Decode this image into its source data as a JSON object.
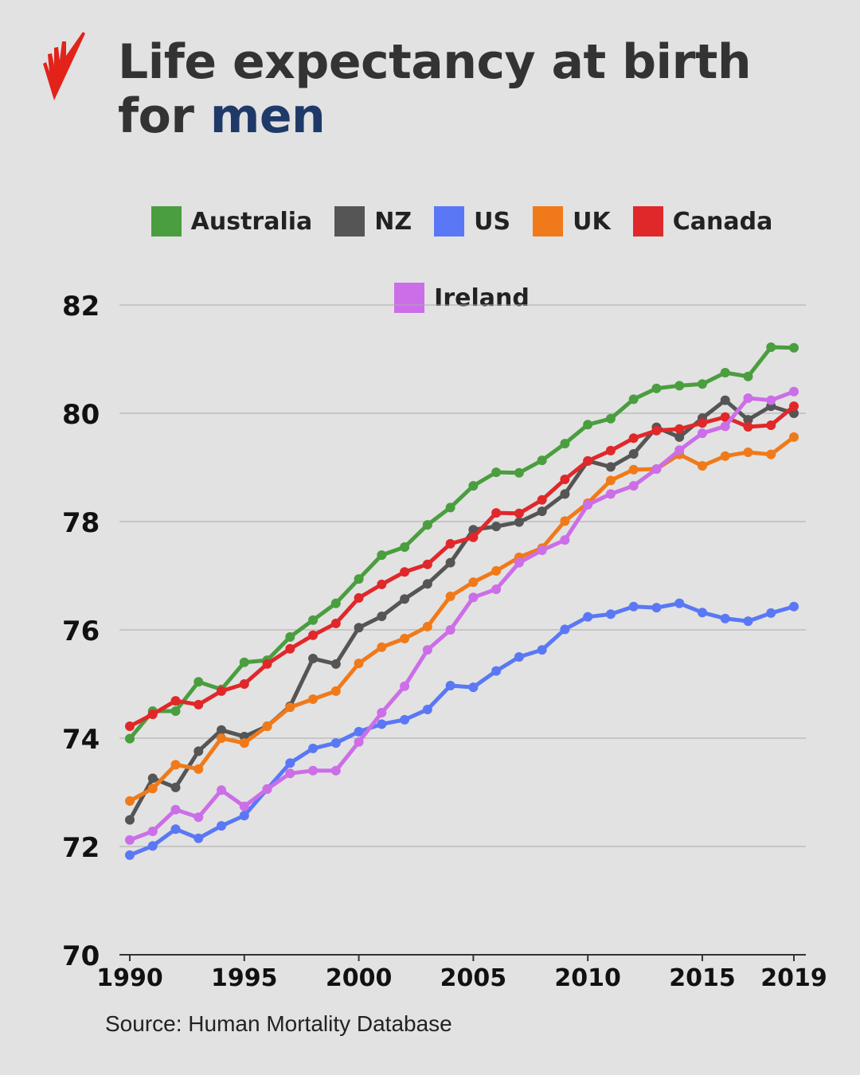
{
  "header": {
    "title_line1": "Life expectancy at birth",
    "title_prefix": "for ",
    "title_highlight": "men",
    "logo": "sbs-logo"
  },
  "source": "Source: Human Mortality Database",
  "chart_data": {
    "type": "line",
    "title": "Life expectancy at birth for men",
    "xlabel": "",
    "ylabel": "",
    "xlim": [
      1990,
      2019
    ],
    "ylim": [
      70,
      82
    ],
    "x_ticks": [
      "1990",
      "1995",
      "2000",
      "2005",
      "2010",
      "2015",
      "2019"
    ],
    "y_ticks": [
      "70",
      "72",
      "74",
      "76",
      "78",
      "80",
      "82"
    ],
    "grid": "horizontal",
    "legend_position": "top",
    "x": [
      1990,
      1991,
      1992,
      1993,
      1994,
      1995,
      1996,
      1997,
      1998,
      1999,
      2000,
      2001,
      2002,
      2003,
      2004,
      2005,
      2006,
      2007,
      2008,
      2009,
      2010,
      2011,
      2012,
      2013,
      2014,
      2015,
      2016,
      2017,
      2018,
      2019
    ],
    "series": [
      {
        "name": "Australia",
        "color": "#4a9e3f",
        "values": [
          73.99,
          74.5,
          74.5,
          75.04,
          74.9,
          75.4,
          75.44,
          75.87,
          76.18,
          76.49,
          76.94,
          77.38,
          77.53,
          77.94,
          78.26,
          78.66,
          78.91,
          78.9,
          79.13,
          79.44,
          79.79,
          79.9,
          80.26,
          80.46,
          80.51,
          80.54,
          80.75,
          80.68,
          81.22,
          81.21
        ]
      },
      {
        "name": "NZ",
        "color": "#555555",
        "values": [
          72.49,
          73.26,
          73.09,
          73.76,
          74.15,
          74.03,
          74.22,
          74.59,
          75.47,
          75.37,
          76.04,
          76.25,
          76.57,
          76.85,
          77.24,
          77.85,
          77.91,
          77.99,
          78.19,
          78.51,
          79.12,
          79.01,
          79.25,
          79.74,
          79.56,
          79.91,
          80.24,
          79.88,
          80.13,
          80.0
        ]
      },
      {
        "name": "US",
        "color": "#5a78f5",
        "values": [
          71.84,
          72.01,
          72.32,
          72.15,
          72.38,
          72.57,
          73.06,
          73.54,
          73.81,
          73.91,
          74.12,
          74.26,
          74.34,
          74.53,
          74.97,
          74.94,
          75.24,
          75.5,
          75.63,
          76.01,
          76.24,
          76.29,
          76.43,
          76.41,
          76.49,
          76.32,
          76.21,
          76.16,
          76.31,
          76.43
        ]
      },
      {
        "name": "UK",
        "color": "#f07a1a",
        "values": [
          72.84,
          73.07,
          73.51,
          73.43,
          74.0,
          73.91,
          74.22,
          74.57,
          74.72,
          74.87,
          75.38,
          75.68,
          75.84,
          76.06,
          76.62,
          76.88,
          77.09,
          77.34,
          77.51,
          78.01,
          78.34,
          78.76,
          78.96,
          78.97,
          79.24,
          79.03,
          79.21,
          79.28,
          79.24,
          79.56
        ]
      },
      {
        "name": "Canada",
        "color": "#e0282a",
        "values": [
          74.22,
          74.44,
          74.69,
          74.62,
          74.87,
          75.0,
          75.37,
          75.65,
          75.9,
          76.12,
          76.59,
          76.84,
          77.07,
          77.21,
          77.59,
          77.71,
          78.16,
          78.15,
          78.4,
          78.78,
          79.12,
          79.31,
          79.54,
          79.68,
          79.71,
          79.82,
          79.93,
          79.75,
          79.78,
          80.13
        ]
      },
      {
        "name": "Ireland",
        "color": "#cc6ee8",
        "values": [
          72.12,
          72.28,
          72.68,
          72.54,
          73.04,
          72.74,
          73.06,
          73.35,
          73.4,
          73.4,
          73.93,
          74.47,
          74.96,
          75.63,
          76.0,
          76.6,
          76.75,
          77.24,
          77.47,
          77.66,
          78.31,
          78.51,
          78.66,
          78.97,
          79.32,
          79.63,
          79.76,
          80.28,
          80.24,
          80.4
        ]
      }
    ]
  }
}
